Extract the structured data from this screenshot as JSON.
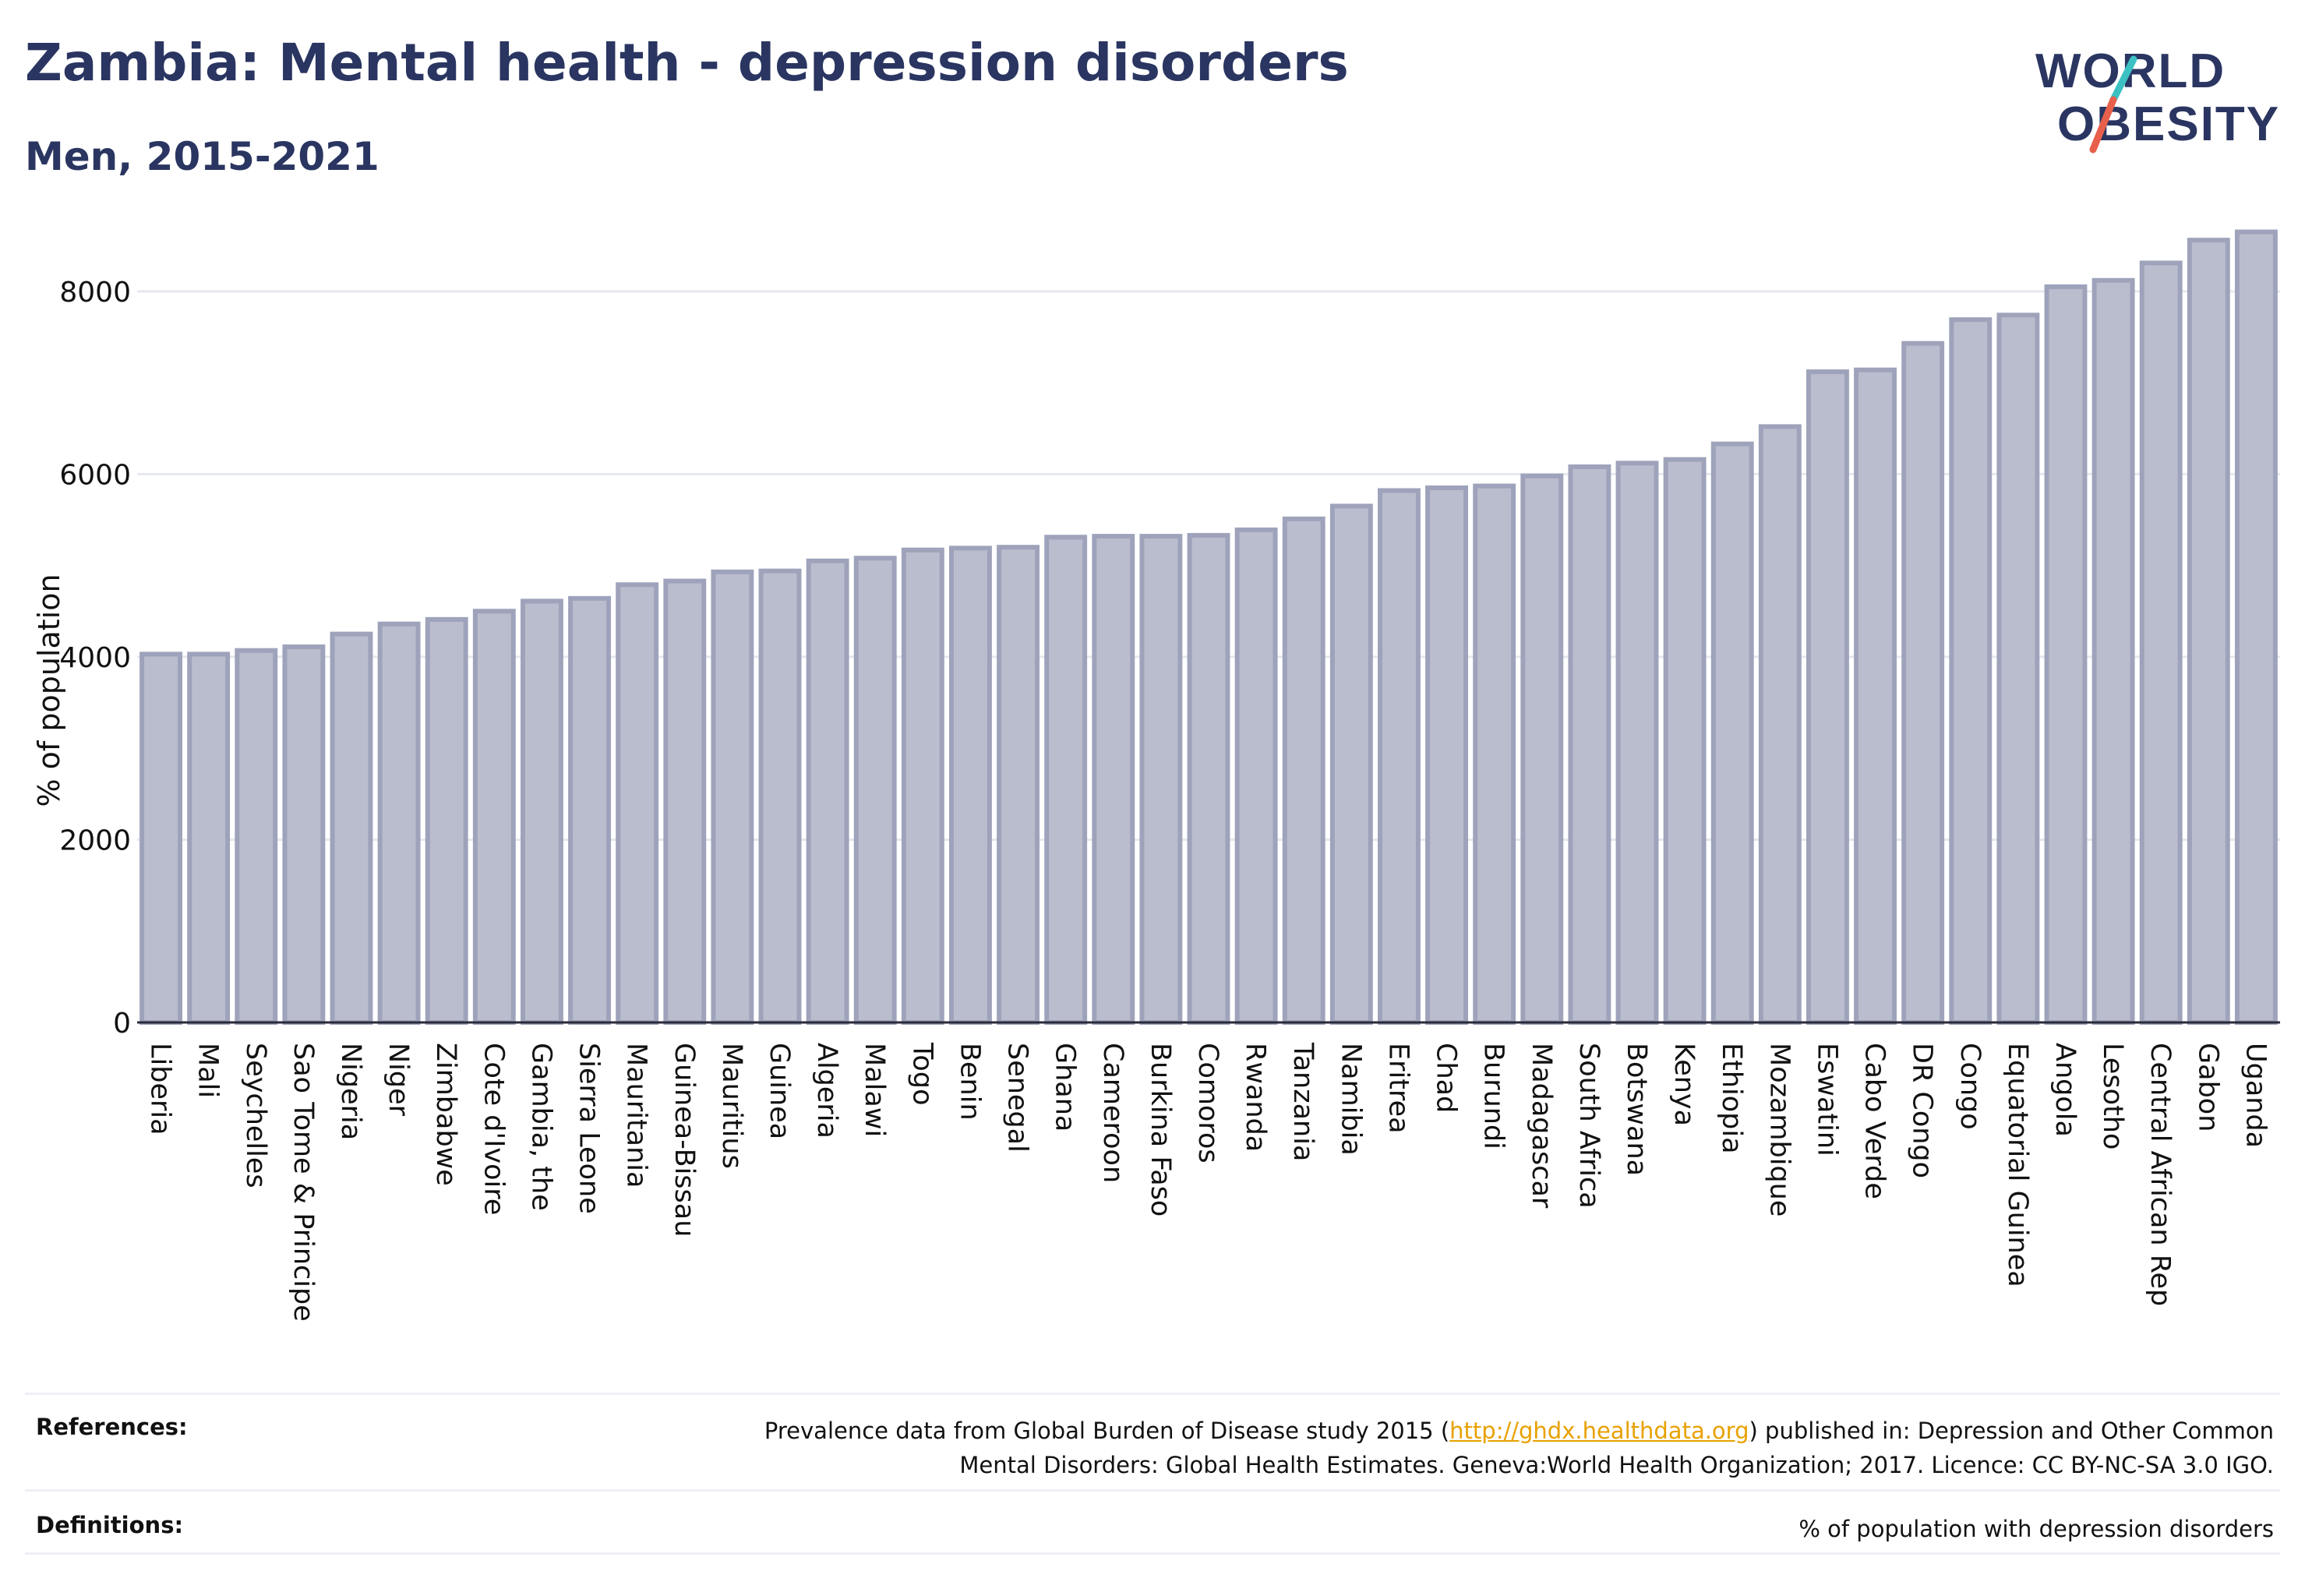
{
  "header": {
    "title": "Zambia: Mental health - depression disorders",
    "subtitle": "Men, 2015-2021"
  },
  "logo": {
    "line1": "WORLD",
    "line2": "OBESITY",
    "slash_colors": [
      "#3cc1c3",
      "#e8604c"
    ]
  },
  "chart_data": {
    "type": "bar",
    "ylabel": "% of population",
    "xlabel": "",
    "ylim": [
      0,
      8800
    ],
    "yticks": [
      0,
      2000,
      4000,
      6000,
      8000
    ],
    "grid": true,
    "bar_color": "#b9bdcd",
    "bar_edge_color": "#9ea3bb",
    "categories": [
      "Liberia",
      "Mali",
      "Seychelles",
      "Sao Tome & Principe",
      "Nigeria",
      "Niger",
      "Zimbabwe",
      "Cote d'Ivoire",
      "Gambia, the",
      "Sierra Leone",
      "Mauritania",
      "Guinea-Bissau",
      "Mauritius",
      "Guinea",
      "Algeria",
      "Malawi",
      "Togo",
      "Benin",
      "Senegal",
      "Ghana",
      "Cameroon",
      "Burkina Faso",
      "Comoros",
      "Rwanda",
      "Tanzania",
      "Namibia",
      "Eritrea",
      "Chad",
      "Burundi",
      "Madagascar",
      "South Africa",
      "Botswana",
      "Kenya",
      "Ethiopia",
      "Mozambique",
      "Eswatini",
      "Cabo Verde",
      "DR Congo",
      "Congo",
      "Equatorial Guinea",
      "Angola",
      "Lesotho",
      "Central African Rep",
      "Gabon",
      "Uganda"
    ],
    "values": [
      4030,
      4030,
      4070,
      4110,
      4250,
      4360,
      4410,
      4500,
      4610,
      4640,
      4790,
      4830,
      4930,
      4940,
      5050,
      5080,
      5170,
      5190,
      5200,
      5310,
      5320,
      5320,
      5330,
      5390,
      5510,
      5650,
      5820,
      5850,
      5870,
      5980,
      6080,
      6120,
      6160,
      6330,
      6520,
      7120,
      7140,
      7430,
      7690,
      7740,
      8050,
      8120,
      8310,
      8560,
      8650
    ]
  },
  "footer": {
    "references_label": "References:",
    "references_before_link": "Prevalence data from Global Burden of Disease study 2015 (",
    "references_link": "http://ghdx.healthdata.org",
    "references_after_link": ") published in: Depression and Other Common",
    "references_line2": "Mental Disorders: Global Health Estimates. Geneva:World Health Organization; 2017. Licence: CC BY-NC-SA 3.0 IGO.",
    "definitions_label": "Definitions:",
    "definitions_text": "% of population with depression disorders"
  }
}
